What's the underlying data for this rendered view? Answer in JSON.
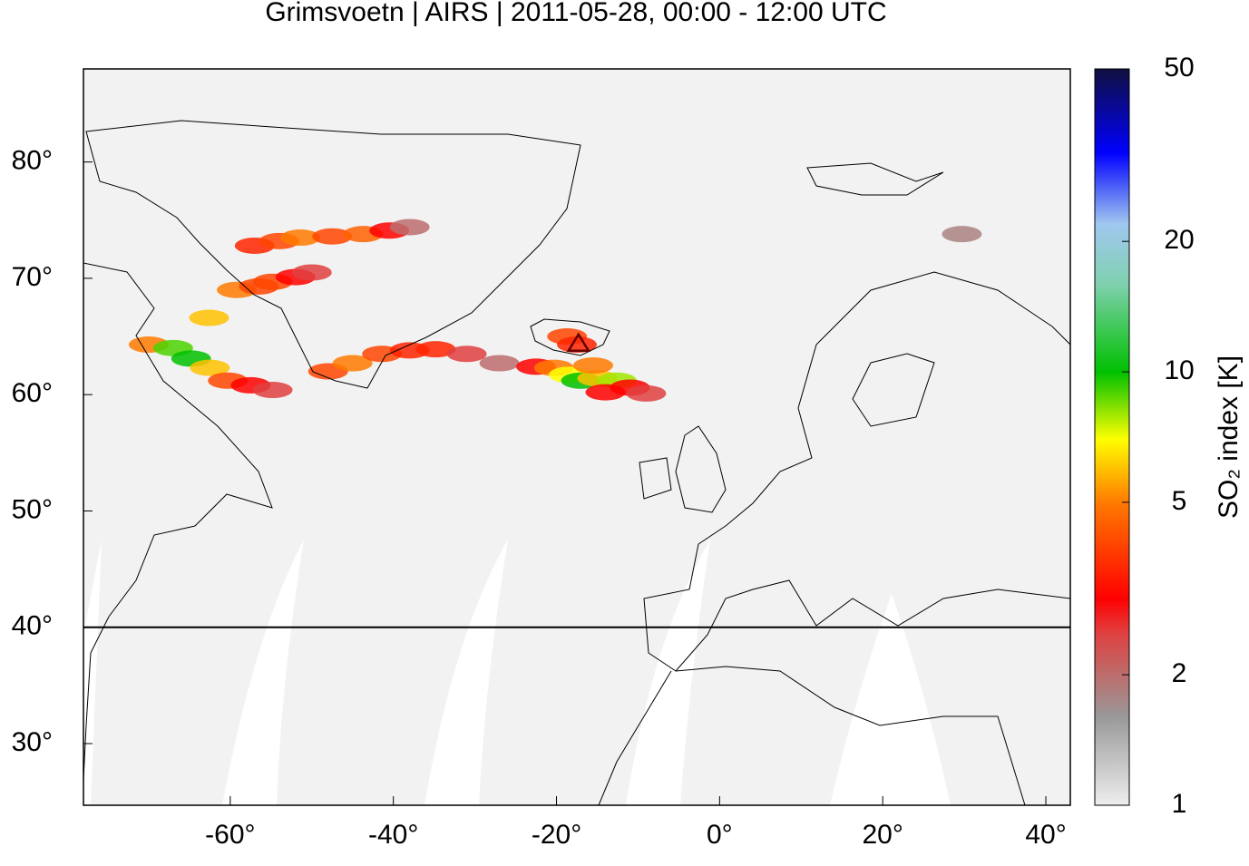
{
  "chart_data": {
    "type": "map",
    "title": "Grimsvoetn | AIRS | 2011-05-28, 00:00 - 12:00 UTC",
    "xlim": [
      -78,
      43
    ],
    "ylim": [
      24.7,
      88
    ],
    "xticks": [
      {
        "value": -60,
        "label": "-60°"
      },
      {
        "value": -40,
        "label": "-40°"
      },
      {
        "value": -20,
        "label": "-20°"
      },
      {
        "value": 0,
        "label": "0°"
      },
      {
        "value": 20,
        "label": "20°"
      },
      {
        "value": 40,
        "label": "40°"
      }
    ],
    "yticks": [
      {
        "value": 30,
        "label": "30°"
      },
      {
        "value": 40,
        "label": "40°"
      },
      {
        "value": 50,
        "label": "50°"
      },
      {
        "value": 60,
        "label": "60°"
      },
      {
        "value": 70,
        "label": "70°"
      },
      {
        "value": 80,
        "label": "80°"
      }
    ],
    "reference_line": 40,
    "volcano": {
      "lon": -17.3,
      "lat": 64.4
    },
    "x": [
      -70,
      -67,
      -64.8,
      -62.5,
      -60.3,
      -57.5,
      -54.8,
      -62.6,
      -59.2,
      -56.5,
      -54.8,
      -52,
      -50,
      -57,
      -54,
      -51.4,
      -47.5,
      -43.7,
      -40.5,
      -38,
      -48,
      -45,
      -41.4,
      -38,
      -34.8,
      -31,
      -27,
      -22.5,
      -20.3,
      -18.5,
      -17,
      -15,
      -12.6,
      -11,
      -9,
      -14,
      -18.7,
      -17.5,
      -15.5,
      29.7
    ],
    "y": [
      64.3,
      64,
      63.1,
      62.3,
      61.2,
      60.8,
      60.4,
      66.6,
      69,
      69.3,
      69.7,
      70.1,
      70.5,
      72.8,
      73.2,
      73.5,
      73.6,
      73.8,
      74.1,
      74.4,
      62,
      62.7,
      63.5,
      63.8,
      63.9,
      63.5,
      62.7,
      62.4,
      62.3,
      61.7,
      61.2,
      61.4,
      61.2,
      60.6,
      60.1,
      60.2,
      65,
      64.3,
      62.5,
      73.8
    ],
    "values": [
      5,
      9,
      10,
      6,
      4,
      3,
      2.5,
      6,
      5,
      4,
      4,
      3,
      2.5,
      3.5,
      4,
      5,
      4,
      4.5,
      3,
      2,
      4,
      5,
      4,
      3.5,
      3.5,
      2.5,
      2,
      3,
      5,
      7,
      10,
      6,
      8,
      3,
      2.5,
      3,
      4,
      3.5,
      5,
      1.8
    ],
    "colorbar": {
      "label": "SO₂ index [K]",
      "lim": [
        1,
        50
      ],
      "log": true,
      "ticks": [
        1,
        2,
        5,
        10,
        20,
        50
      ],
      "stops": [
        {
          "value": 1,
          "color": "#eeeeee"
        },
        {
          "value": 1.6,
          "color": "#999999"
        },
        {
          "value": 2.5,
          "color": "#e04040"
        },
        {
          "value": 3,
          "color": "#ff0000"
        },
        {
          "value": 5,
          "color": "#ff7a00"
        },
        {
          "value": 7,
          "color": "#ffff00"
        },
        {
          "value": 10,
          "color": "#00c000"
        },
        {
          "value": 16,
          "color": "#80d0b0"
        },
        {
          "value": 22,
          "color": "#a0c8f0"
        },
        {
          "value": 32,
          "color": "#0000ff"
        },
        {
          "value": 50,
          "color": "#101040"
        }
      ]
    }
  }
}
